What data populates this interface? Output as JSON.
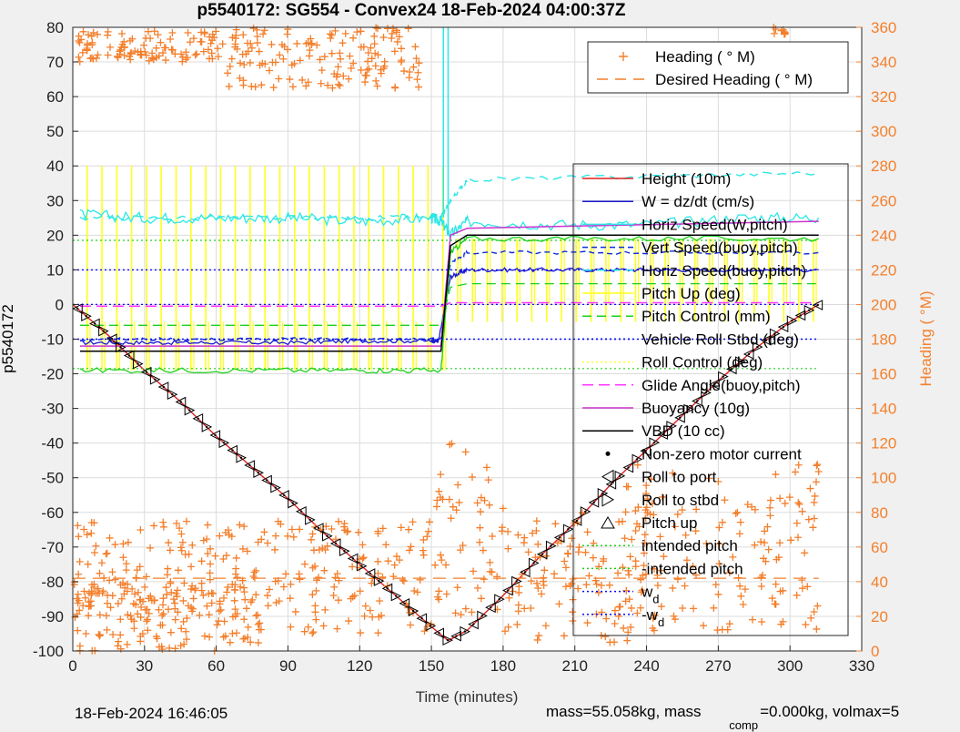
{
  "figure": {
    "title": "p5540172: SG554 - Convex24 18-Feb-2024 04:00:37Z",
    "timestamp": "18-Feb-2024 16:46:05",
    "footer_mass": "mass=55.058kg, mass",
    "footer_comp_sub": "comp",
    "footer_comp_rest": "=0.000kg, volmax=5"
  },
  "colors": {
    "heading": "#f47f2b",
    "height": "#e01f1f",
    "w": "#1a1ad0",
    "horiz": "#2ee6e6",
    "vert": "#0b2cd6",
    "pitch": "#ffff1a",
    "pitch_ctrl": "#1ed01e",
    "roll": "#0a0aff",
    "glide": "#ff33ff",
    "buoyancy": "#cc33cc",
    "vbd": "#000000",
    "bg": "#ffffff"
  },
  "chart_data": {
    "type": "line",
    "title": "p5540172: SG554 - Convex24 18-Feb-2024 04:00:37Z",
    "xlabel": "Time (minutes)",
    "ylabel": "p5540172",
    "y2label": "Heading (   °M)",
    "xlim": [
      0,
      330
    ],
    "ylim": [
      -100,
      80
    ],
    "y2lim": [
      0,
      360
    ],
    "xticks": [
      0,
      30,
      60,
      90,
      120,
      150,
      180,
      210,
      240,
      270,
      300,
      330
    ],
    "yticks": [
      -100,
      -90,
      -80,
      -70,
      -60,
      -50,
      -40,
      -30,
      -20,
      -10,
      0,
      10,
      20,
      30,
      40,
      50,
      60,
      70,
      80
    ],
    "y2ticks": [
      0,
      20,
      40,
      60,
      80,
      100,
      120,
      140,
      160,
      180,
      200,
      220,
      240,
      260,
      280,
      300,
      320,
      340,
      360
    ],
    "grid": true,
    "legends": [
      {
        "position": "top-right",
        "entries": [
          "Heading (   ° M)",
          "Desired Heading (    ° M)"
        ]
      },
      {
        "position": "right",
        "entries": [
          "Height (10m)",
          "W = dz/dt (cm/s)",
          "Horiz Speed(W,pitch)",
          "Vert Speed(buoy,pitch)",
          "Horiz Speed(buoy,pitch)",
          "Pitch Up (deg)",
          "Pitch Control (mm)",
          "Vehicle Roll Stbd (deg)",
          "Roll Control (deg)",
          "Glide Angle(buoy,pitch)",
          "Buoyancy (10g)",
          "VBD (10 cc)",
          "Non-zero motor current",
          "Roll to port",
          "Roll to stbd",
          "Pitch up",
          "intended pitch",
          "-intended pitch",
          "w",
          "-w"
        ],
        "sub": [
          "",
          "",
          "",
          "",
          "",
          "",
          "",
          "",
          "",
          "",
          "",
          "",
          "",
          "",
          "",
          "",
          "",
          "",
          "d",
          "d"
        ]
      }
    ],
    "series": [
      {
        "name": "Height (10m)",
        "axis": "left",
        "style": "line",
        "x": [
          0,
          15,
          30,
          45,
          60,
          75,
          90,
          105,
          120,
          135,
          150,
          157,
          165,
          180,
          195,
          210,
          225,
          240,
          255,
          270,
          285,
          300,
          312
        ],
        "y": [
          0,
          -9,
          -19,
          -28,
          -38,
          -47,
          -56,
          -66,
          -75,
          -84,
          -93,
          -97,
          -94,
          -84,
          -73,
          -63,
          -52,
          -42,
          -32,
          -22,
          -13,
          -5,
          0
        ]
      },
      {
        "name": "W = dz/dt (cm/s)",
        "axis": "left",
        "style": "line",
        "x": [
          3,
          30,
          60,
          90,
          120,
          150,
          153,
          158,
          165,
          190,
          220,
          250,
          280,
          312
        ],
        "y": [
          -11,
          -11,
          -11,
          -11,
          -10.5,
          -10.5,
          -10.5,
          8,
          10,
          10,
          10,
          10,
          10,
          10
        ]
      },
      {
        "name": "Horiz Speed(W,pitch)",
        "axis": "left",
        "style": "line",
        "x": [
          3,
          30,
          60,
          90,
          120,
          150,
          154,
          158,
          165,
          200,
          240,
          280,
          312
        ],
        "y": [
          26,
          25,
          25,
          25,
          24,
          25,
          24,
          20,
          24,
          23,
          23,
          25,
          25
        ]
      },
      {
        "name": "Vert Speed(buoy,pitch)",
        "axis": "left",
        "style": "line",
        "x": [
          3,
          60,
          120,
          154,
          158,
          165,
          240,
          312
        ],
        "y": [
          -10,
          -10,
          -10,
          -10,
          12,
          15,
          15,
          15
        ]
      },
      {
        "name": "Horiz Speed(buoy,pitch)",
        "axis": "left",
        "style": "dashed",
        "x": [
          3,
          60,
          120,
          154,
          158,
          165,
          240,
          312
        ],
        "y": [
          25,
          25,
          25,
          25,
          30,
          36,
          37,
          38
        ]
      },
      {
        "name": "Pitch Up (deg)",
        "axis": "left",
        "style": "line",
        "x": [
          3,
          60,
          120,
          154,
          158,
          165,
          240,
          312
        ],
        "y": [
          -19,
          -19,
          -19,
          -19,
          15,
          19,
          19,
          19
        ]
      },
      {
        "name": "Pitch Control (mm)",
        "axis": "left",
        "style": "dashed",
        "x": [
          3,
          60,
          120,
          154,
          158,
          165,
          240,
          312
        ],
        "y": [
          -6,
          -6,
          -6,
          -6,
          5,
          6,
          6,
          6
        ]
      },
      {
        "name": "Vehicle Roll Stbd (deg)",
        "axis": "left",
        "style": "dotted",
        "x": [
          0,
          312
        ],
        "y": [
          0,
          0
        ]
      },
      {
        "name": "Glide Angle(buoy,pitch)",
        "axis": "left",
        "style": "dashed",
        "x": [
          3,
          154,
          158,
          312
        ],
        "y": [
          -0.5,
          -0.5,
          0.5,
          0.5
        ]
      },
      {
        "name": "Buoyancy (10g)",
        "axis": "left",
        "style": "line",
        "x": [
          3,
          154,
          158,
          165,
          312
        ],
        "y": [
          -12,
          -12,
          20,
          22,
          24
        ]
      },
      {
        "name": "VBD (10 cc)",
        "axis": "left",
        "style": "line",
        "x": [
          3,
          154,
          158,
          165,
          312
        ],
        "y": [
          -13.5,
          -13.5,
          17,
          20,
          20
        ]
      },
      {
        "name": "intended pitch",
        "axis": "left",
        "style": "dotted",
        "x": [
          0,
          312
        ],
        "y": [
          18.5,
          18.5
        ]
      },
      {
        "name": "-intended pitch",
        "axis": "left",
        "style": "dotted",
        "x": [
          0,
          312
        ],
        "y": [
          -18.5,
          -18.5
        ]
      },
      {
        "name": "w",
        "axis": "left",
        "style": "dotted",
        "x": [
          0,
          312
        ],
        "y": [
          10,
          10
        ]
      },
      {
        "name": "-w",
        "axis": "left",
        "style": "dotted",
        "x": [
          0,
          312
        ],
        "y": [
          -10,
          -10
        ]
      },
      {
        "name": "Desired Heading (    ° M)",
        "axis": "right",
        "style": "dashed",
        "x": [
          0,
          312
        ],
        "y": [
          42,
          42
        ]
      }
    ],
    "heading_clusters": [
      {
        "x": [
          2,
          62
        ],
        "y": [
          340,
          358
        ]
      },
      {
        "x": [
          62,
          145
        ],
        "y": [
          325,
          360
        ]
      },
      {
        "x": [
          2,
          60
        ],
        "y": [
          20,
          75
        ]
      },
      {
        "x": [
          60,
          150
        ],
        "y": [
          10,
          75
        ]
      },
      {
        "x": [
          0,
          80
        ],
        "y": [
          0,
          40
        ]
      },
      {
        "x": [
          150,
          180
        ],
        "y": [
          20,
          120
        ]
      },
      {
        "x": [
          180,
          240
        ],
        "y": [
          5,
          80
        ]
      },
      {
        "x": [
          230,
          312
        ],
        "y": [
          10,
          110
        ]
      },
      {
        "x": [
          293,
          298
        ],
        "y": [
          355,
          360
        ]
      }
    ]
  }
}
